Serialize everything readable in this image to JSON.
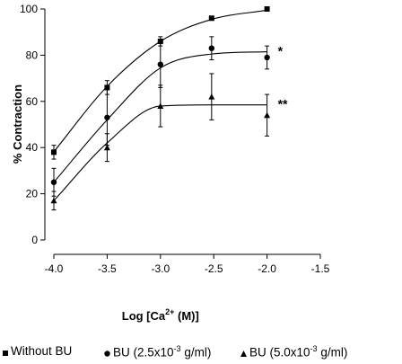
{
  "chart_data": {
    "type": "line",
    "xlabel": {
      "main": "Log [Ca",
      "sup": "2+",
      "tail": " (M)]"
    },
    "ylabel": "% Contraction",
    "xlim": [
      -4.0,
      -1.5
    ],
    "ylim": [
      0,
      100
    ],
    "xticks": [
      -4.0,
      -3.5,
      -3.0,
      -2.5,
      -2.0,
      -1.5
    ],
    "xtick_labels": [
      "-4.0",
      "-3.5",
      "-3.0",
      "-2.5",
      "-2.0",
      "-1.5"
    ],
    "yticks": [
      0,
      20,
      40,
      60,
      80,
      100
    ],
    "ytick_labels": [
      "0",
      "20",
      "40",
      "60",
      "80",
      "100"
    ],
    "grid": false,
    "legend_position": "bottom",
    "series": [
      {
        "name": "Without BU",
        "label_parts": {
          "main": "Without BU",
          "sup": "",
          "tail": ""
        },
        "marker": "square",
        "x": [
          -4.0,
          -3.5,
          -3.0,
          -2.52,
          -2.0
        ],
        "y": [
          38,
          66,
          86,
          96,
          100
        ],
        "err": [
          3,
          3,
          2,
          0,
          0
        ],
        "fit": [
          38.2,
          66.5,
          86.0,
          95.5,
          99.5
        ],
        "annotation": ""
      },
      {
        "name": "BU (2.5x10-3 g/ml)",
        "label_parts": {
          "main": "BU (2.5x10",
          "sup": "-3",
          "tail": " g/ml)"
        },
        "marker": "circle",
        "x": [
          -4.0,
          -3.5,
          -3.0,
          -2.52,
          -2.0
        ],
        "y": [
          25,
          53,
          76,
          83,
          79
        ],
        "err": [
          6,
          12,
          10,
          5,
          5
        ],
        "fit": [
          25.0,
          52.0,
          74.5,
          80.5,
          81.5
        ],
        "annotation": "*"
      },
      {
        "name": "BU (5.0x10-3 g/ml)",
        "label_parts": {
          "main": "BU (5.0x10",
          "sup": "-3",
          "tail": " g/ml)"
        },
        "marker": "triangle",
        "x": [
          -4.0,
          -3.5,
          -3.0,
          -2.52,
          -2.0
        ],
        "y": [
          17,
          40,
          58,
          62,
          54
        ],
        "err": [
          4,
          6,
          9,
          10,
          9
        ],
        "fit": [
          17.0,
          42.0,
          58.0,
          58.5,
          58.5
        ],
        "annotation": "**"
      }
    ]
  }
}
